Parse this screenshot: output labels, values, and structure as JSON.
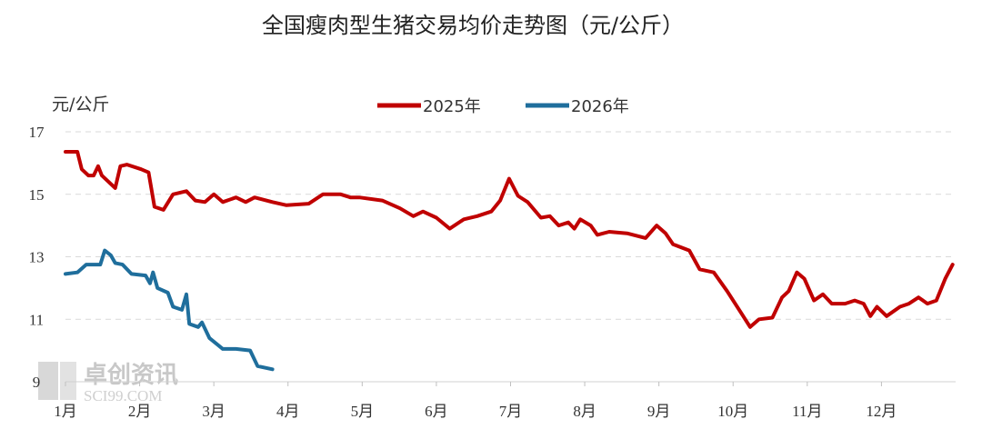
{
  "chart_data": {
    "type": "line",
    "title": "全国瘦肉型生猪交易均价走势图（元/公斤）",
    "ylabel": "元/公斤",
    "xlabel": "",
    "ylim": [
      9,
      17
    ],
    "yticks": [
      9,
      11,
      13,
      15,
      17
    ],
    "xlim": [
      1,
      13
    ],
    "xtick_labels": [
      "1月",
      "2月",
      "3月",
      "4月",
      "5月",
      "6月",
      "7月",
      "8月",
      "9月",
      "10月",
      "11月",
      "12月"
    ],
    "grid": "horizontal dashed",
    "legend_position": "top-center",
    "series": [
      {
        "name": "2025年",
        "color": "#c00000",
        "x": [
          1.0,
          1.16,
          1.22,
          1.31,
          1.38,
          1.44,
          1.49,
          1.67,
          1.74,
          1.83,
          2.02,
          2.12,
          2.2,
          2.32,
          2.45,
          2.63,
          2.75,
          2.88,
          3.0,
          3.12,
          3.3,
          3.43,
          3.55,
          3.79,
          3.98,
          4.28,
          4.47,
          4.71,
          4.84,
          4.96,
          5.27,
          5.51,
          5.69,
          5.82,
          6.0,
          6.18,
          6.37,
          6.55,
          6.74,
          6.86,
          6.98,
          7.1,
          7.23,
          7.41,
          7.53,
          7.65,
          7.78,
          7.86,
          7.94,
          8.08,
          8.17,
          8.33,
          8.57,
          8.82,
          8.97,
          9.09,
          9.19,
          9.41,
          9.55,
          9.74,
          9.92,
          10.11,
          10.23,
          10.35,
          10.53,
          10.66,
          10.75,
          10.86,
          10.96,
          11.09,
          11.21,
          11.33,
          11.51,
          11.64,
          11.76,
          11.85,
          11.94,
          12.07,
          12.25,
          12.37,
          12.5,
          12.62,
          12.74,
          12.86,
          12.96
        ],
        "y": [
          16.36,
          16.36,
          15.8,
          15.6,
          15.6,
          15.9,
          15.6,
          15.2,
          15.9,
          15.95,
          15.8,
          15.7,
          14.6,
          14.5,
          15.0,
          15.1,
          14.8,
          14.75,
          15.0,
          14.75,
          14.9,
          14.75,
          14.9,
          14.75,
          14.65,
          14.7,
          15.0,
          15.0,
          14.9,
          14.9,
          14.8,
          14.55,
          14.3,
          14.45,
          14.25,
          13.9,
          14.2,
          14.3,
          14.45,
          14.8,
          15.5,
          14.95,
          14.75,
          14.25,
          14.3,
          14.0,
          14.1,
          13.9,
          14.2,
          14.0,
          13.7,
          13.8,
          13.75,
          13.6,
          14.0,
          13.75,
          13.4,
          13.2,
          12.6,
          12.5,
          11.9,
          11.2,
          10.75,
          11.0,
          11.05,
          11.7,
          11.9,
          12.5,
          12.3,
          11.6,
          11.8,
          11.5,
          11.5,
          11.6,
          11.5,
          11.1,
          11.4,
          11.1,
          11.4,
          11.5,
          11.7,
          11.5,
          11.6,
          12.3,
          12.75
        ]
      },
      {
        "name": "2026年",
        "color": "#1f6e9c",
        "x": [
          1.0,
          1.16,
          1.28,
          1.47,
          1.53,
          1.61,
          1.67,
          1.77,
          1.89,
          2.08,
          2.14,
          2.18,
          2.24,
          2.38,
          2.45,
          2.57,
          2.63,
          2.67,
          2.79,
          2.84,
          2.94,
          3.12,
          3.3,
          3.49,
          3.59,
          3.79
        ],
        "y": [
          12.45,
          12.5,
          12.75,
          12.75,
          13.2,
          13.05,
          12.8,
          12.75,
          12.45,
          12.4,
          12.15,
          12.5,
          12.0,
          11.85,
          11.4,
          11.3,
          11.8,
          10.85,
          10.75,
          10.9,
          10.4,
          10.05,
          10.05,
          10.0,
          9.5,
          9.4
        ]
      }
    ]
  },
  "watermark": {
    "cn": "卓创资讯",
    "en": "SCI99.COM"
  }
}
